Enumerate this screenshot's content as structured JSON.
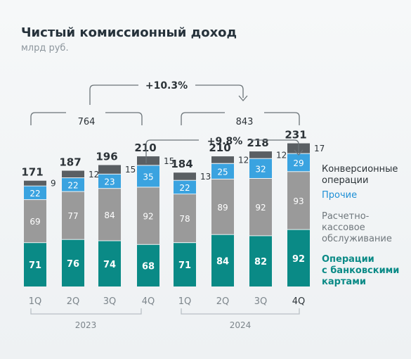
{
  "header": {
    "title": "Чистый комиссионный доход",
    "subtitle": "млрд руб."
  },
  "colors": {
    "cards": "#0a8a86",
    "settlement": "#9a9a9a",
    "other": "#3aa3e0",
    "conversion": "#5a5f63",
    "text_dark": "#2c3338",
    "text_gray": "#666d72"
  },
  "annotations": {
    "growth_total": "+10.3%",
    "growth_q4": "+9.8%",
    "sum_2023": "764",
    "sum_2024": "843"
  },
  "legend": [
    {
      "series": "conversion",
      "label": "Конверсионные\nоперации"
    },
    {
      "series": "other",
      "label": "Прочие"
    },
    {
      "series": "settlement",
      "label": "Расчетно-\nкассовое\nобслуживание"
    },
    {
      "series": "cards",
      "label": "Операции\nс банковскими\nкартами"
    }
  ],
  "chart_data": {
    "type": "bar",
    "stacked": true,
    "categories": [
      "1Q",
      "2Q",
      "3Q",
      "4Q",
      "1Q",
      "2Q",
      "3Q",
      "4Q"
    ],
    "groups": [
      {
        "label": "2023",
        "categories": [
          "1Q",
          "2Q",
          "3Q",
          "4Q"
        ]
      },
      {
        "label": "2024",
        "categories": [
          "1Q",
          "2Q",
          "3Q",
          "4Q"
        ]
      }
    ],
    "series": [
      {
        "name": "Операции с банковскими картами",
        "key": "cards",
        "values": [
          71,
          76,
          74,
          68,
          71,
          84,
          82,
          92
        ]
      },
      {
        "name": "Расчетно-кассовое обслуживание",
        "key": "settlement",
        "values": [
          69,
          77,
          84,
          92,
          78,
          89,
          92,
          93
        ]
      },
      {
        "name": "Прочие",
        "key": "other",
        "values": [
          22,
          22,
          23,
          35,
          22,
          25,
          32,
          29
        ]
      },
      {
        "name": "Конверсионные операции",
        "key": "conversion",
        "values": [
          9,
          12,
          15,
          15,
          13,
          12,
          12,
          17
        ]
      }
    ],
    "totals": [
      171,
      187,
      196,
      210,
      184,
      210,
      218,
      231
    ],
    "title": "Чистый комиссионный доход",
    "ylabel": "млрд руб.",
    "ylim": [
      0,
      240
    ],
    "grid": false,
    "legend_position": "right"
  }
}
